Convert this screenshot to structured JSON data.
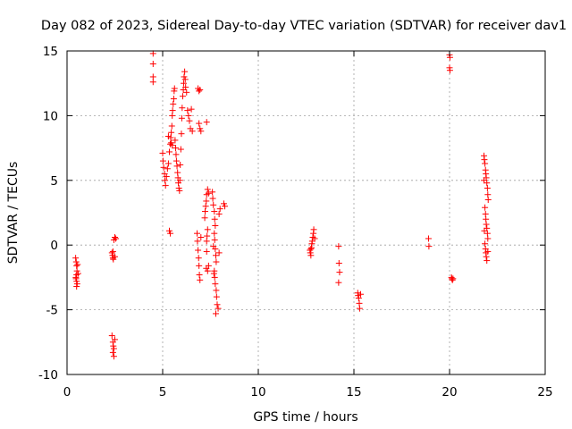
{
  "chart_data": {
    "type": "scatter",
    "title": "Day 082 of 2023, Sidereal Day-to-day VTEC variation (SDTVAR) for receiver dav1",
    "xlabel": "GPS time / hours",
    "ylabel": "SDTVAR / TECUs",
    "xlim": [
      0,
      25
    ],
    "ylim": [
      -10,
      15
    ],
    "xticks": [
      0,
      5,
      10,
      15,
      20,
      25
    ],
    "yticks": [
      -10,
      -5,
      0,
      5,
      10,
      15
    ],
    "xtick_labels": [
      "0",
      "5",
      "10",
      "15",
      "20",
      "25"
    ],
    "ytick_labels": [
      "-10",
      "-5",
      "0",
      "5",
      "10",
      "15"
    ],
    "grid": true,
    "marker": "+",
    "color": "#ff0000",
    "series": [
      {
        "name": "SDTVAR",
        "points": [
          [
            0.45,
            -1.0
          ],
          [
            0.48,
            -1.3
          ],
          [
            0.5,
            -1.6
          ],
          [
            0.52,
            -2.0
          ],
          [
            0.5,
            -2.3
          ],
          [
            0.47,
            -2.6
          ],
          [
            0.5,
            -2.8
          ],
          [
            0.53,
            -3.0
          ],
          [
            0.5,
            -3.2
          ],
          [
            0.55,
            -1.5
          ],
          [
            0.58,
            -2.2
          ],
          [
            0.46,
            -2.5
          ],
          [
            2.35,
            -0.6
          ],
          [
            2.38,
            -0.8
          ],
          [
            2.4,
            -1.0
          ],
          [
            2.42,
            -1.1
          ],
          [
            2.45,
            0.4
          ],
          [
            2.5,
            0.6
          ],
          [
            2.55,
            0.5
          ],
          [
            2.4,
            -0.5
          ],
          [
            2.5,
            -0.9
          ],
          [
            2.35,
            -7.0
          ],
          [
            2.4,
            -7.5
          ],
          [
            2.42,
            -7.8
          ],
          [
            2.45,
            -8.0
          ],
          [
            2.4,
            -8.3
          ],
          [
            2.45,
            -8.6
          ],
          [
            2.5,
            -7.3
          ],
          [
            4.5,
            14.8
          ],
          [
            4.5,
            14.0
          ],
          [
            4.5,
            13.0
          ],
          [
            4.5,
            12.6
          ],
          [
            5.0,
            7.1
          ],
          [
            5.02,
            6.5
          ],
          [
            5.05,
            6.0
          ],
          [
            5.1,
            5.5
          ],
          [
            5.12,
            5.0
          ],
          [
            5.15,
            4.6
          ],
          [
            5.2,
            5.3
          ],
          [
            5.25,
            5.9
          ],
          [
            5.3,
            6.3
          ],
          [
            5.35,
            7.2
          ],
          [
            5.4,
            7.8
          ],
          [
            5.42,
            8.3
          ],
          [
            5.45,
            8.7
          ],
          [
            5.48,
            9.2
          ],
          [
            5.5,
            10.0
          ],
          [
            5.52,
            10.4
          ],
          [
            5.55,
            10.9
          ],
          [
            5.58,
            11.3
          ],
          [
            5.6,
            11.9
          ],
          [
            5.62,
            12.1
          ],
          [
            5.65,
            8.1
          ],
          [
            5.68,
            7.5
          ],
          [
            5.7,
            7.0
          ],
          [
            5.72,
            6.5
          ],
          [
            5.75,
            6.1
          ],
          [
            5.78,
            5.6
          ],
          [
            5.8,
            5.2
          ],
          [
            5.82,
            4.8
          ],
          [
            5.85,
            4.4
          ],
          [
            5.88,
            4.2
          ],
          [
            5.9,
            5.0
          ],
          [
            5.92,
            6.2
          ],
          [
            5.95,
            7.4
          ],
          [
            5.98,
            8.6
          ],
          [
            6.0,
            9.8
          ],
          [
            6.02,
            10.6
          ],
          [
            6.05,
            11.5
          ],
          [
            6.08,
            12.0
          ],
          [
            6.1,
            12.5
          ],
          [
            6.12,
            13.0
          ],
          [
            6.15,
            13.4
          ],
          [
            6.18,
            12.8
          ],
          [
            6.2,
            12.2
          ],
          [
            6.25,
            11.8
          ],
          [
            6.3,
            10.4
          ],
          [
            6.35,
            10.0
          ],
          [
            6.4,
            9.6
          ],
          [
            6.45,
            9.0
          ],
          [
            6.5,
            10.5
          ],
          [
            6.55,
            8.8
          ],
          [
            5.35,
            1.1
          ],
          [
            5.4,
            0.9
          ],
          [
            5.3,
            8.4
          ],
          [
            5.45,
            7.9
          ],
          [
            5.5,
            7.7
          ],
          [
            6.85,
            12.1
          ],
          [
            6.9,
            11.9
          ],
          [
            6.95,
            12.0
          ],
          [
            6.9,
            9.4
          ],
          [
            6.95,
            9.0
          ],
          [
            7.0,
            8.8
          ],
          [
            7.3,
            9.5
          ],
          [
            6.8,
            0.9
          ],
          [
            6.82,
            0.3
          ],
          [
            6.85,
            -0.4
          ],
          [
            6.88,
            -1.0
          ],
          [
            6.9,
            -1.6
          ],
          [
            6.92,
            -2.3
          ],
          [
            6.95,
            -2.7
          ],
          [
            7.0,
            0.6
          ],
          [
            7.2,
            2.1
          ],
          [
            7.22,
            2.6
          ],
          [
            7.25,
            3.0
          ],
          [
            7.28,
            3.4
          ],
          [
            7.3,
            3.9
          ],
          [
            7.35,
            4.3
          ],
          [
            7.4,
            4.0
          ],
          [
            7.3,
            0.3
          ],
          [
            7.32,
            0.7
          ],
          [
            7.35,
            1.2
          ],
          [
            7.3,
            -0.5
          ],
          [
            7.28,
            -1.8
          ],
          [
            7.35,
            -2.0
          ],
          [
            7.4,
            -1.6
          ],
          [
            7.6,
            4.1
          ],
          [
            7.62,
            3.6
          ],
          [
            7.65,
            3.1
          ],
          [
            7.7,
            2.6
          ],
          [
            7.72,
            2.0
          ],
          [
            7.75,
            1.5
          ],
          [
            7.7,
            0.9
          ],
          [
            7.72,
            0.4
          ],
          [
            7.75,
            -0.3
          ],
          [
            7.78,
            -0.8
          ],
          [
            7.8,
            -1.3
          ],
          [
            7.7,
            -2.0
          ],
          [
            7.72,
            -2.5
          ],
          [
            7.75,
            -3.0
          ],
          [
            7.8,
            -3.5
          ],
          [
            7.82,
            -4.0
          ],
          [
            7.85,
            -4.6
          ],
          [
            7.78,
            -5.3
          ],
          [
            7.9,
            -4.9
          ],
          [
            7.95,
            -0.6
          ],
          [
            7.95,
            2.4
          ],
          [
            8.0,
            2.8
          ],
          [
            8.2,
            3.2
          ],
          [
            8.25,
            3.0
          ],
          [
            7.65,
            -0.1
          ],
          [
            7.68,
            -2.2
          ],
          [
            12.7,
            -0.4
          ],
          [
            12.72,
            -0.6
          ],
          [
            12.75,
            -0.8
          ],
          [
            12.78,
            -0.2
          ],
          [
            12.8,
            0.1
          ],
          [
            12.82,
            0.3
          ],
          [
            12.85,
            0.6
          ],
          [
            12.88,
            0.9
          ],
          [
            12.9,
            1.2
          ],
          [
            12.95,
            0.5
          ],
          [
            12.75,
            -0.3
          ],
          [
            14.2,
            -0.1
          ],
          [
            14.22,
            -1.4
          ],
          [
            14.25,
            -2.1
          ],
          [
            14.2,
            -2.9
          ],
          [
            15.2,
            -3.7
          ],
          [
            15.22,
            -3.9
          ],
          [
            15.25,
            -4.1
          ],
          [
            15.28,
            -4.5
          ],
          [
            15.3,
            -4.9
          ],
          [
            15.35,
            -3.8
          ],
          [
            18.9,
            0.5
          ],
          [
            18.92,
            -0.1
          ],
          [
            20.0,
            14.7
          ],
          [
            20.02,
            14.5
          ],
          [
            20.0,
            13.7
          ],
          [
            20.02,
            13.5
          ],
          [
            20.1,
            -2.5
          ],
          [
            20.12,
            -2.6
          ],
          [
            20.15,
            -2.7
          ],
          [
            20.18,
            -2.6
          ],
          [
            21.8,
            6.9
          ],
          [
            21.82,
            6.6
          ],
          [
            21.85,
            6.3
          ],
          [
            21.88,
            5.8
          ],
          [
            21.9,
            5.5
          ],
          [
            21.92,
            5.2
          ],
          [
            21.95,
            4.8
          ],
          [
            21.98,
            4.4
          ],
          [
            22.0,
            3.9
          ],
          [
            22.02,
            3.5
          ],
          [
            21.85,
            2.9
          ],
          [
            21.88,
            2.4
          ],
          [
            21.9,
            2.0
          ],
          [
            21.92,
            1.6
          ],
          [
            21.95,
            1.3
          ],
          [
            21.98,
            0.9
          ],
          [
            22.0,
            0.5
          ],
          [
            21.85,
            0.1
          ],
          [
            21.88,
            -0.3
          ],
          [
            21.9,
            -0.6
          ],
          [
            21.92,
            -0.9
          ],
          [
            21.95,
            -1.2
          ],
          [
            22.0,
            -0.5
          ],
          [
            21.8,
            5.0
          ],
          [
            21.82,
            1.1
          ]
        ]
      }
    ]
  }
}
